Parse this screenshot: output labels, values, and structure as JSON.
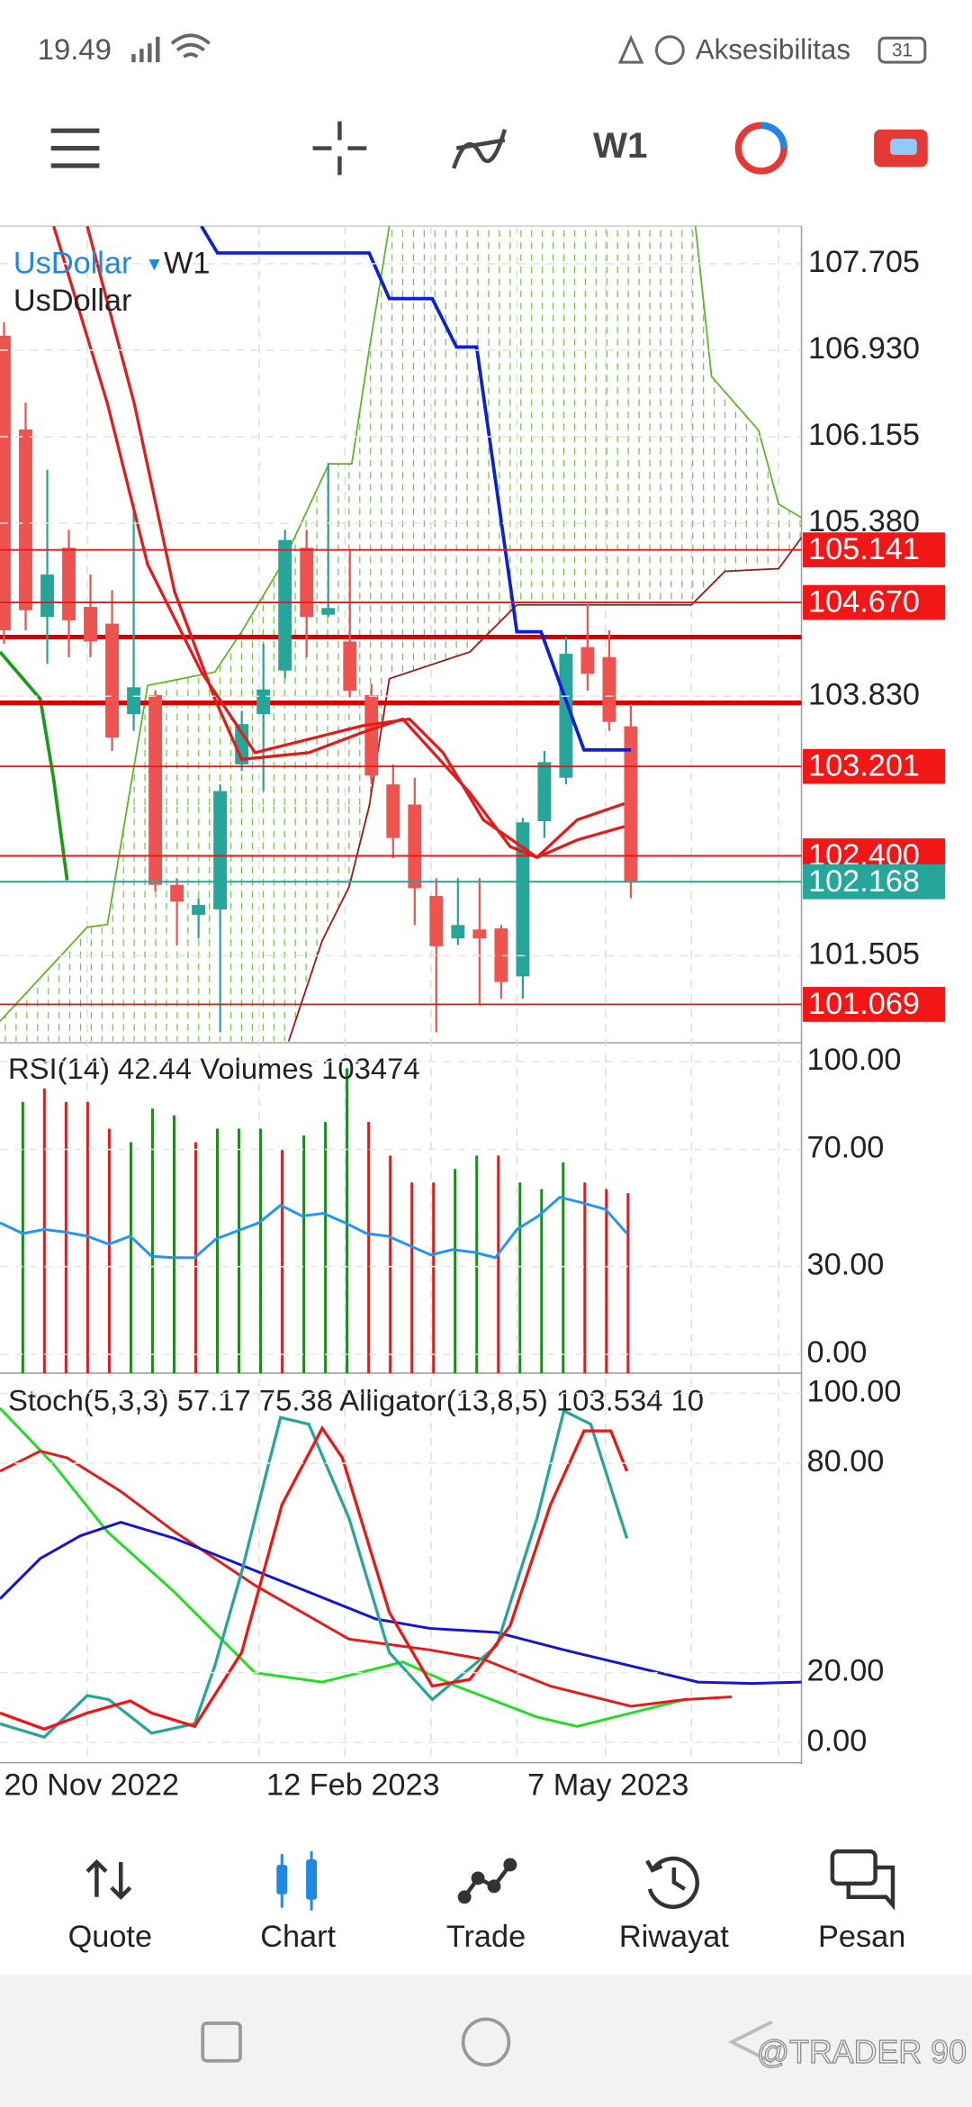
{
  "status_bar": {
    "time": "19.49",
    "accessibility": "Aksesibilitas",
    "battery": "31"
  },
  "toolbar": {
    "timeframe": "W1"
  },
  "main_chart": {
    "symbol": "UsDollar",
    "timeframe": "W1",
    "subtitle": "UsDollar",
    "price_axis": [
      107.705,
      {
        "value": 106.93,
        "label": "106.930"
      },
      106.155,
      {
        "value": 105.38,
        "label": "105.380"
      },
      {
        "value": 103.83,
        "label": "103.830"
      },
      101.505
    ],
    "price_tags": [
      105.141,
      {
        "value": 104.67,
        "label": "104.670"
      },
      103.201,
      {
        "value": 102.4,
        "label": "102.400"
      },
      101.069
    ],
    "current_price": 102.168,
    "candles": [
      [
        107.06,
        107.18,
        104.3,
        104.42
      ],
      [
        106.22,
        106.46,
        104.42,
        104.6
      ],
      [
        104.54,
        105.86,
        104.12,
        104.92
      ],
      [
        105.16,
        105.32,
        104.18,
        104.51
      ],
      [
        104.63,
        104.92,
        104.18,
        104.32
      ],
      [
        104.48,
        104.78,
        103.34,
        103.46
      ],
      [
        103.67,
        105.56,
        103.52,
        103.91
      ],
      [
        103.84,
        103.88,
        102.08,
        102.14
      ],
      [
        102.14,
        102.2,
        101.6,
        101.99
      ],
      [
        101.87,
        102.02,
        101.66,
        101.96
      ],
      [
        101.92,
        103.04,
        100.82,
        102.98
      ],
      [
        103.22,
        103.7,
        103.16,
        103.58
      ],
      [
        103.67,
        104.3,
        102.98,
        103.89
      ],
      [
        104.06,
        105.32,
        103.99,
        105.23
      ],
      [
        105.16,
        105.32,
        104.18,
        104.54
      ],
      [
        104.56,
        105.92,
        104.54,
        104.62
      ],
      [
        104.32,
        105.14,
        103.82,
        103.88
      ],
      [
        103.84,
        103.94,
        103.04,
        103.12
      ],
      [
        103.04,
        103.22,
        102.38,
        102.56
      ],
      [
        102.86,
        103.1,
        101.78,
        102.11
      ],
      [
        102.04,
        102.2,
        100.82,
        101.59
      ],
      [
        101.66,
        102.2,
        101.6,
        101.78
      ],
      [
        101.74,
        102.2,
        101.06,
        101.66
      ],
      [
        101.75,
        101.78,
        101.12,
        101.27
      ],
      [
        101.32,
        102.74,
        101.12,
        102.7
      ],
      [
        102.71,
        103.34,
        102.56,
        103.24
      ],
      [
        103.1,
        104.36,
        103.04,
        104.21
      ],
      [
        104.27,
        104.66,
        103.88,
        104.03
      ],
      [
        104.18,
        104.42,
        103.52,
        103.6
      ],
      [
        103.56,
        103.76,
        102.02,
        102.16
      ]
    ]
  },
  "rsi_panel": {
    "label": "RSI(14) 42.44 Volumes 103474",
    "axis": [
      {
        "value": 100,
        "label": "100.00"
      },
      {
        "value": 70,
        "label": "70.00"
      },
      {
        "value": 30,
        "label": "30.00"
      },
      {
        "value": 0,
        "label": "0.00"
      }
    ]
  },
  "stoch_panel": {
    "label": "Stoch(5,3,3) 57.17 75.38 Alligator(13,8,5) 103.534 10",
    "axis": [
      {
        "value": 100,
        "label": "100.00"
      },
      {
        "value": 80,
        "label": "80.00"
      },
      {
        "value": 20,
        "label": "20.00"
      },
      {
        "value": 0,
        "label": "0.00"
      }
    ]
  },
  "time_axis": [
    "20 Nov 2022",
    "12 Feb 2023",
    "7 May 2023"
  ],
  "bottom_nav": {
    "active_index": 1,
    "items": [
      {
        "label": "Quote"
      },
      {
        "label": "Chart"
      },
      {
        "label": "Trade"
      },
      {
        "label": "Riwayat"
      },
      {
        "label": "Pesan"
      }
    ]
  },
  "watermark": "@TRADER 90"
}
